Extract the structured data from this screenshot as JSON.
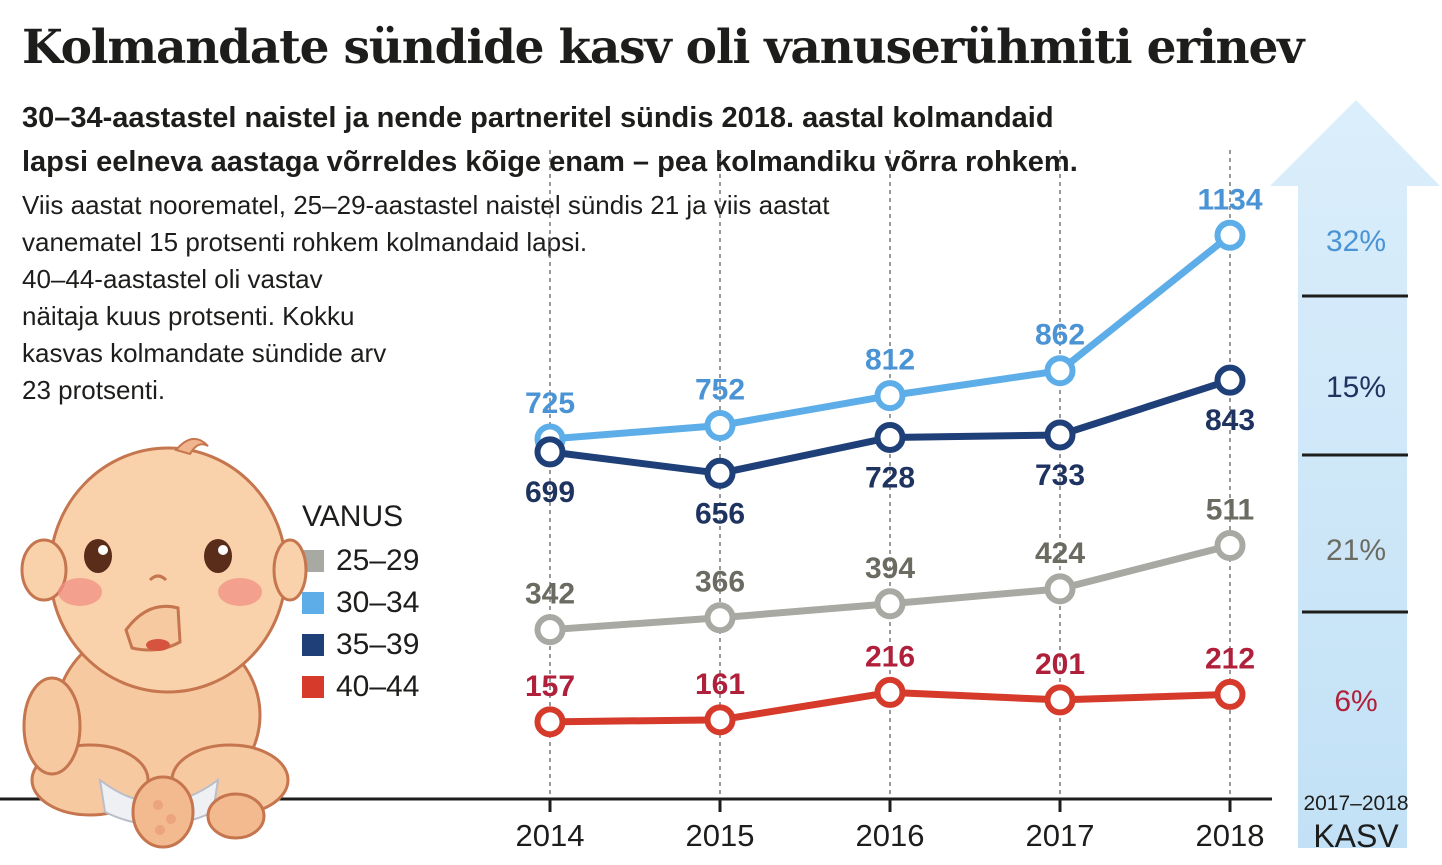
{
  "chart_data": {
    "type": "line",
    "title": "Kolmandate sündide kasv oli vanuserühmiti erinev",
    "subtitle_lines": [
      "30–34-aastastel naistel ja nende partneritel sündis 2018. aastal kolmandaid",
      "lapsi eelneva aastaga võrreldes kõige enam – pea kolmandiku võrra rohkem."
    ],
    "body_lines": [
      "Viis aastat noorematel, 25–29-aastastel naistel sündis 21 ja viis aastat",
      "vanematel 15 protsenti rohkem kolmandaid lapsi.",
      "40–44-aastastel oli vastav",
      "näitaja kuus protsenti. Kokku",
      "kasvas kolmandate sündide arv",
      "23 protsenti."
    ],
    "x": [
      "2014",
      "2015",
      "2016",
      "2017",
      "2018"
    ],
    "ylim": [
      0,
      1250
    ],
    "legend_title": "VANUS",
    "series": [
      {
        "name": "25–29",
        "color": "#a8a9a2",
        "label_color": "#6b6b62",
        "values": [
          342,
          366,
          394,
          424,
          511
        ],
        "label_pos": [
          "above",
          "above",
          "above",
          "above",
          "above"
        ],
        "growth": "21%"
      },
      {
        "name": "30–34",
        "color": "#5daee8",
        "label_color": "#4a93d4",
        "values": [
          725,
          752,
          812,
          862,
          1134
        ],
        "label_pos": [
          "above",
          "above",
          "above",
          "above",
          "above"
        ],
        "growth": "32%"
      },
      {
        "name": "35–39",
        "color": "#1e3f78",
        "label_color": "#1e3360",
        "values": [
          699,
          656,
          728,
          733,
          843
        ],
        "label_pos": [
          "below",
          "below",
          "below",
          "below",
          "below"
        ],
        "growth": "15%"
      },
      {
        "name": "40–44",
        "color": "#d53a2a",
        "label_color": "#b0203a",
        "values": [
          157,
          161,
          216,
          201,
          212
        ],
        "label_pos": [
          "above",
          "above",
          "above",
          "above",
          "above"
        ],
        "growth": "6%"
      }
    ],
    "growth_panel": {
      "heading_year": "2017–2018",
      "heading_label": "KASV",
      "order": [
        "30–34",
        "35–39",
        "25–29",
        "40–44"
      ]
    }
  }
}
